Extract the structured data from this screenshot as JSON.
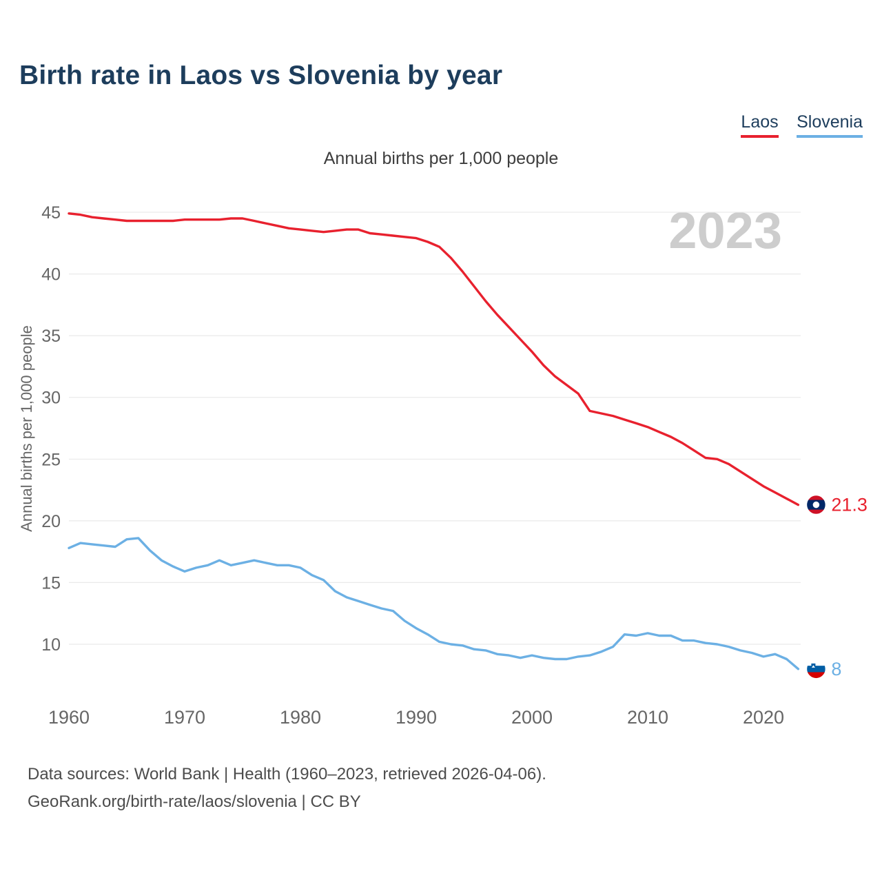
{
  "page": {
    "title": "Birth rate in Laos vs Slovenia by year",
    "watermark": "2023",
    "footer": {
      "line1": "Data sources: World Bank | Health (1960–2023, retrieved 2026-04-06).",
      "line2": "GeoRank.org/birth-rate/laos/slovenia | CC BY"
    }
  },
  "legend": {
    "items": [
      {
        "label": "Laos",
        "color": "#e8212e"
      },
      {
        "label": "Slovenia",
        "color": "#6cb0e4"
      }
    ]
  },
  "chart_data": {
    "type": "line",
    "title": "Birth rate in Laos vs Slovenia by year",
    "subtitle": "Annual births per 1,000 people",
    "ylabel": "Annual births per 1,000 people",
    "xlabel": "",
    "xlim": [
      1960,
      2023
    ],
    "ylim": [
      7,
      46
    ],
    "yticks": [
      45,
      40,
      35,
      30,
      25,
      20,
      15,
      10
    ],
    "xticks": [
      1960,
      1970,
      1980,
      1990,
      2000,
      2010,
      2020
    ],
    "grid": true,
    "legend_position": "top-right",
    "watermark": "2023",
    "grid_color": "#e9e9e9",
    "axis_text_color": "#666666",
    "watermark_color": "#cdcdcd",
    "x": [
      1960,
      1961,
      1962,
      1963,
      1964,
      1965,
      1966,
      1967,
      1968,
      1969,
      1970,
      1971,
      1972,
      1973,
      1974,
      1975,
      1976,
      1977,
      1978,
      1979,
      1980,
      1981,
      1982,
      1983,
      1984,
      1985,
      1986,
      1987,
      1988,
      1989,
      1990,
      1991,
      1992,
      1993,
      1994,
      1995,
      1996,
      1997,
      1998,
      1999,
      2000,
      2001,
      2002,
      2003,
      2004,
      2005,
      2006,
      2007,
      2008,
      2009,
      2010,
      2011,
      2012,
      2013,
      2014,
      2015,
      2016,
      2017,
      2018,
      2019,
      2020,
      2021,
      2022,
      2023
    ],
    "series": [
      {
        "name": "Laos",
        "color": "#e8212e",
        "flag": "laos",
        "end_label": "21.3",
        "end_value": 21.3,
        "values": [
          44.9,
          44.8,
          44.6,
          44.5,
          44.4,
          44.3,
          44.3,
          44.3,
          44.3,
          44.3,
          44.4,
          44.4,
          44.4,
          44.4,
          44.5,
          44.5,
          44.3,
          44.1,
          43.9,
          43.7,
          43.6,
          43.5,
          43.4,
          43.5,
          43.6,
          43.6,
          43.3,
          43.2,
          43.1,
          43.0,
          42.9,
          42.6,
          42.2,
          41.3,
          40.2,
          39.0,
          37.8,
          36.7,
          35.7,
          34.7,
          33.7,
          32.6,
          31.7,
          31.0,
          30.3,
          28.9,
          28.7,
          28.5,
          28.2,
          27.9,
          27.6,
          27.2,
          26.8,
          26.3,
          25.7,
          25.1,
          25.0,
          24.6,
          24.0,
          23.4,
          22.8,
          22.3,
          21.8,
          21.3
        ]
      },
      {
        "name": "Slovenia",
        "color": "#6cb0e4",
        "flag": "slovenia",
        "end_label": "8",
        "end_value": 8,
        "values": [
          17.8,
          18.2,
          18.1,
          18.0,
          17.9,
          18.5,
          18.6,
          17.6,
          16.8,
          16.3,
          15.9,
          16.2,
          16.4,
          16.8,
          16.4,
          16.6,
          16.8,
          16.6,
          16.4,
          16.4,
          16.2,
          15.6,
          15.2,
          14.3,
          13.8,
          13.5,
          13.2,
          12.9,
          12.7,
          11.9,
          11.3,
          10.8,
          10.2,
          10.0,
          9.9,
          9.6,
          9.5,
          9.2,
          9.1,
          8.9,
          9.1,
          8.9,
          8.8,
          8.8,
          9.0,
          9.1,
          9.4,
          9.8,
          10.8,
          10.7,
          10.9,
          10.7,
          10.7,
          10.3,
          10.3,
          10.1,
          10.0,
          9.8,
          9.5,
          9.3,
          9.0,
          9.2,
          8.8,
          8.0
        ]
      }
    ]
  }
}
